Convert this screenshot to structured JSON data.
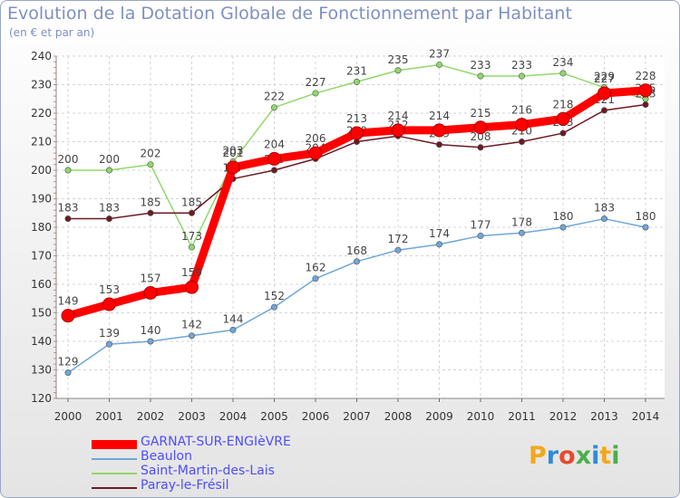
{
  "chart_data": {
    "type": "line",
    "title": "Evolution de la Dotation Globale de Fonctionnement par Habitant",
    "subtitle": "(en € et par an)",
    "xlabel": "",
    "ylabel": "",
    "ylim": [
      120,
      240
    ],
    "yticks": [
      120,
      130,
      140,
      150,
      160,
      170,
      180,
      190,
      200,
      210,
      220,
      230,
      240
    ],
    "categories": [
      "2000",
      "2001",
      "2002",
      "2003",
      "2004",
      "2005",
      "2006",
      "2007",
      "2008",
      "2009",
      "2010",
      "2011",
      "2012",
      "2013",
      "2014"
    ],
    "grid": true,
    "legend_position": "bottom-left",
    "series": [
      {
        "name": "Saint-Martin-des-Lais",
        "color": "#8fd86b",
        "values": [
          200,
          200,
          202,
          173,
          203,
          222,
          227,
          231,
          235,
          237,
          233,
          233,
          234,
          229,
          225
        ]
      },
      {
        "name": "Paray-le-Frésil",
        "color": "#6b1a24",
        "values": [
          183,
          183,
          185,
          185,
          197,
          200,
          204,
          210,
          212,
          209,
          208,
          210,
          213,
          221,
          223
        ]
      },
      {
        "name": "Beaulon",
        "color": "#6fa6d8",
        "values": [
          129,
          139,
          140,
          142,
          144,
          152,
          162,
          168,
          172,
          174,
          177,
          178,
          180,
          183,
          180
        ]
      },
      {
        "name": "GARNAT-SUR-ENGIèVRE",
        "color": "#ff0000",
        "values": [
          149,
          153,
          157,
          159,
          201,
          204,
          206,
          213,
          214,
          214,
          215,
          216,
          218,
          227,
          228
        ]
      }
    ],
    "legend_order": [
      "GARNAT-SUR-ENGIèVRE",
      "Beaulon",
      "Saint-Martin-des-Lais",
      "Paray-le-Frésil"
    ]
  },
  "logo": {
    "letters": [
      "P",
      "r",
      "o",
      "x",
      "i",
      "t",
      "i"
    ],
    "colors": [
      "#f2a81d",
      "#2f8bd6",
      "#e64a2e",
      "#4cae4c",
      "#2f8bd6",
      "#f2a81d",
      "#4cae4c"
    ]
  }
}
